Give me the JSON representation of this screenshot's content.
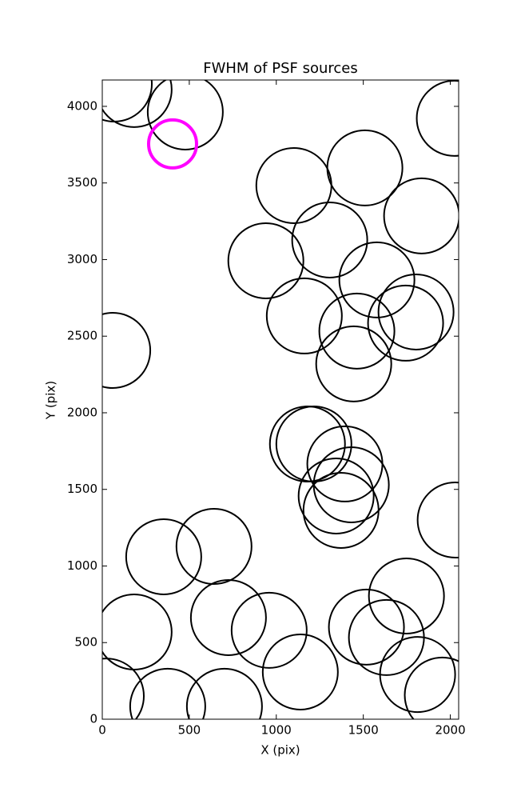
{
  "chart_data": {
    "type": "scatter",
    "title": "FWHM of PSF sources",
    "xlabel": "X (pix)",
    "ylabel": "Y (pix)",
    "x": [
      69,
      183,
      477,
      2023,
      404,
      1101,
      1509,
      1835,
      1307,
      940,
      1578,
      1803,
      1743,
      1161,
      1463,
      1445,
      60,
      1179,
      1216,
      1394,
      1431,
      1344,
      1372,
      2028,
      642,
      353,
      183,
      725,
      959,
      1748,
      1518,
      1633,
      1138,
      1812,
      1954,
      23,
      376,
      702
    ],
    "y": [
      4146,
      4110,
      3963,
      3922,
      3755,
      3483,
      3598,
      3285,
      3128,
      2992,
      2867,
      2658,
      2585,
      2632,
      2533,
      2319,
      2407,
      1796,
      1796,
      1666,
      1530,
      1457,
      1363,
      1300,
      1128,
      1060,
      569,
      663,
      580,
      804,
      601,
      533,
      308,
      292,
      157,
      151,
      84,
      84
    ],
    "sizes": [
      47,
      47,
      47,
      47,
      30,
      47,
      47,
      47,
      47,
      47,
      47,
      47,
      47,
      47,
      47,
      47,
      47,
      47,
      47,
      47,
      47,
      47,
      47,
      47,
      47,
      47,
      47,
      47,
      47,
      47,
      47,
      47,
      47,
      47,
      47,
      47,
      47,
      47
    ],
    "colors": [
      "#000000",
      "#000000",
      "#000000",
      "#000000",
      "#ff00ff",
      "#000000",
      "#000000",
      "#000000",
      "#000000",
      "#000000",
      "#000000",
      "#000000",
      "#000000",
      "#000000",
      "#000000",
      "#000000",
      "#000000",
      "#000000",
      "#000000",
      "#000000",
      "#000000",
      "#000000",
      "#000000",
      "#000000",
      "#000000",
      "#000000",
      "#000000",
      "#000000",
      "#000000",
      "#000000",
      "#000000",
      "#000000",
      "#000000",
      "#000000",
      "#000000",
      "#000000",
      "#000000",
      "#000000"
    ],
    "xlim": [
      0,
      2048
    ],
    "ylim": [
      0,
      4172
    ],
    "xticks": [
      0,
      500,
      1000,
      1500,
      2000
    ],
    "yticks": [
      0,
      500,
      1000,
      1500,
      2000,
      2500,
      3000,
      3500,
      4000
    ]
  }
}
